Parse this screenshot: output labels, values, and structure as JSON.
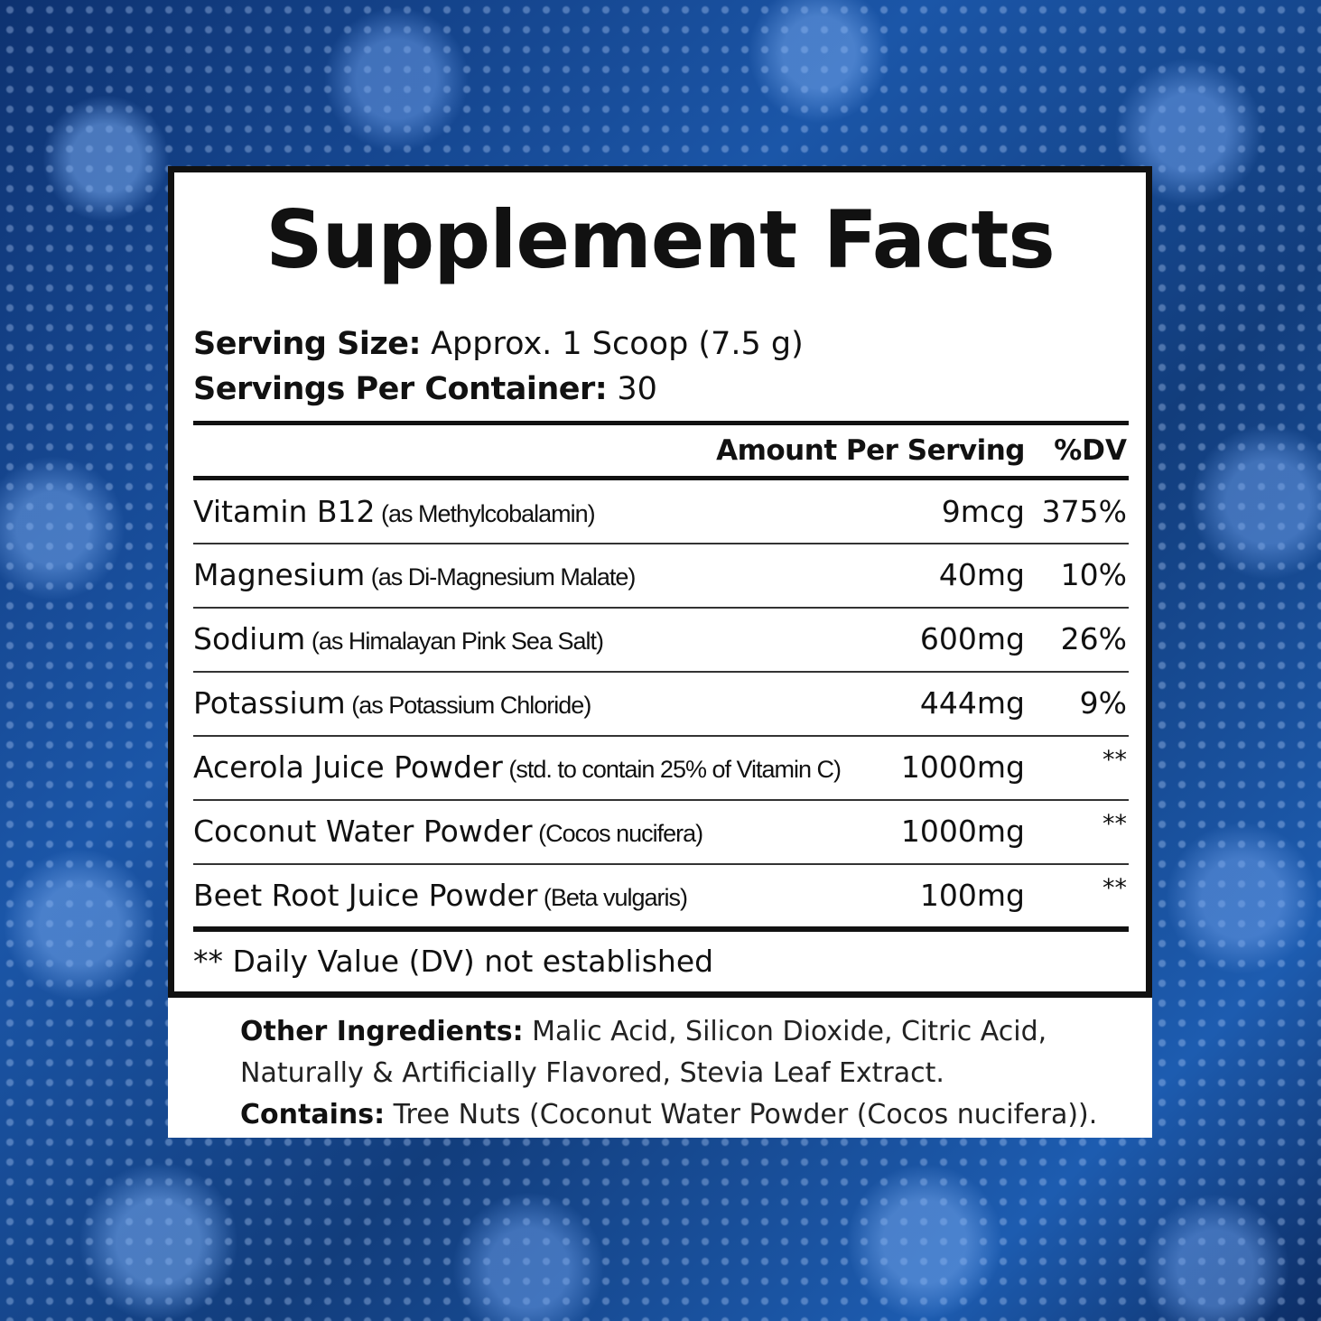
{
  "background": {
    "description_icon": "blue-raspberry-pattern",
    "color": "#123d7c"
  },
  "label": {
    "title": "Supplement Facts",
    "serving_size_label": "Serving Size:",
    "serving_size_value": " Approx. 1 Scoop (7.5 g)",
    "servings_per_container_label": "Servings Per Container:",
    "servings_per_container_value": " 30",
    "header_amount": "Amount Per Serving",
    "header_dv": "%DV",
    "rows": [
      {
        "name": "Vitamin B12",
        "note": " (as Methylcobalamin)",
        "amount": "9mcg",
        "dv": "375%"
      },
      {
        "name": "Magnesium",
        "note": " (as Di-Magnesium Malate)",
        "amount": "40mg",
        "dv": "10%"
      },
      {
        "name": "Sodium",
        "note": " (as Himalayan Pink Sea Salt)",
        "amount": "600mg",
        "dv": "26%"
      },
      {
        "name": "Potassium",
        "note": " (as Potassium Chloride)",
        "amount": "444mg",
        "dv": "9%"
      },
      {
        "name": "Acerola Juice Powder",
        "note": " (std. to contain 25% of Vitamin C)",
        "amount": "1000mg",
        "dv": "**"
      },
      {
        "name": "Coconut Water Powder",
        "note": " (Cocos nucifera)",
        "amount": "1000mg",
        "dv": "**"
      },
      {
        "name": "Beet Root Juice Powder",
        "note": " (Beta vulgaris)",
        "amount": "100mg",
        "dv": "**"
      }
    ],
    "footnote": "** Daily Value (DV) not established"
  },
  "other": {
    "other_label": "Other Ingredients:",
    "other_value": " Malic Acid, Silicon Dioxide, Citric Acid, Naturally & Artificially Flavored, Stevia Leaf Extract.",
    "contains_label": "Contains:",
    "contains_value": " Tree Nuts (Coconut Water Powder (Cocos nucifera))."
  }
}
